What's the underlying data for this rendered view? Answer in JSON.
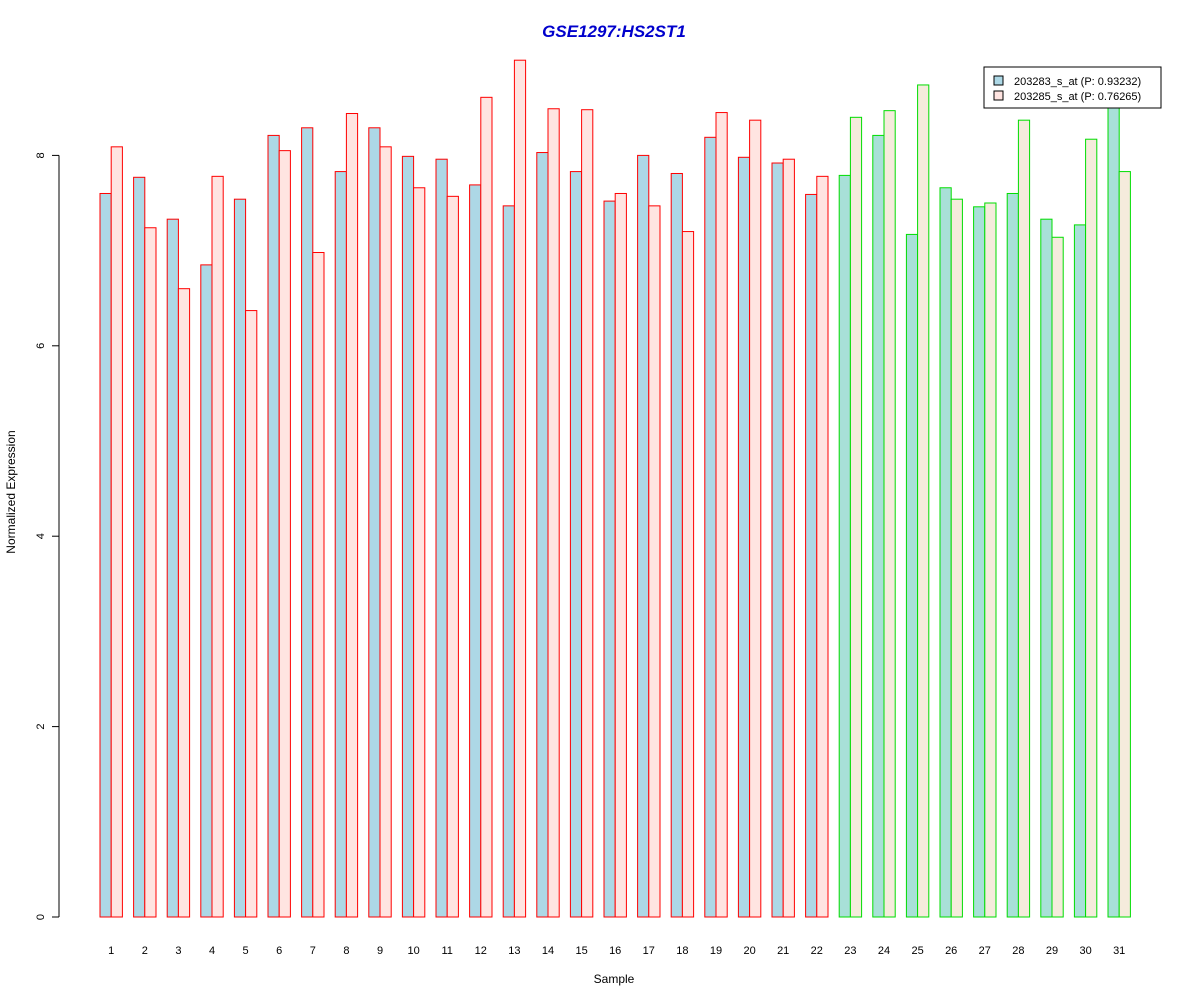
{
  "chart_data": {
    "type": "bar",
    "title": "GSE1297:HS2ST1",
    "xlabel": "Sample",
    "ylabel": "Normalized Expression",
    "ylim": [
      0,
      9
    ],
    "yticks": [
      "0",
      "2",
      "4",
      "6",
      "8"
    ],
    "categories": [
      "1",
      "2",
      "3",
      "4",
      "5",
      "6",
      "7",
      "8",
      "9",
      "10",
      "11",
      "12",
      "13",
      "14",
      "15",
      "16",
      "17",
      "18",
      "19",
      "20",
      "21",
      "22",
      "23",
      "24",
      "25",
      "26",
      "27",
      "28",
      "29",
      "30",
      "31"
    ],
    "groups": [
      {
        "samples": 22,
        "border_color": "#ff0000"
      },
      {
        "samples": 9,
        "border_color": "#00dd00"
      }
    ],
    "series": [
      {
        "name": "203283_s_at (P: 0.93232)",
        "fill_group1": "#add8e6",
        "fill_group2": "#a8e0d8",
        "values": [
          7.6,
          7.77,
          7.33,
          6.85,
          7.54,
          8.21,
          8.29,
          7.83,
          8.29,
          7.99,
          7.96,
          7.69,
          7.47,
          8.03,
          7.83,
          7.52,
          8.0,
          7.81,
          8.19,
          7.98,
          7.92,
          7.59,
          7.79,
          8.21,
          7.17,
          7.66,
          7.46,
          7.6,
          7.33,
          7.27,
          8.52
        ]
      },
      {
        "name": "203285_s_at (P: 0.76265)",
        "fill_group1": "#ffe4e1",
        "fill_group2": "#f5ebdc",
        "values": [
          8.09,
          7.24,
          6.6,
          7.78,
          6.37,
          8.05,
          6.98,
          8.44,
          8.09,
          7.66,
          7.57,
          8.61,
          9.0,
          8.49,
          8.48,
          7.6,
          7.47,
          7.2,
          8.45,
          8.37,
          7.96,
          7.78,
          8.4,
          8.47,
          8.74,
          7.54,
          7.5,
          8.37,
          7.14,
          8.17,
          7.83
        ]
      }
    ],
    "legend_position": "top-right",
    "grid": false
  }
}
